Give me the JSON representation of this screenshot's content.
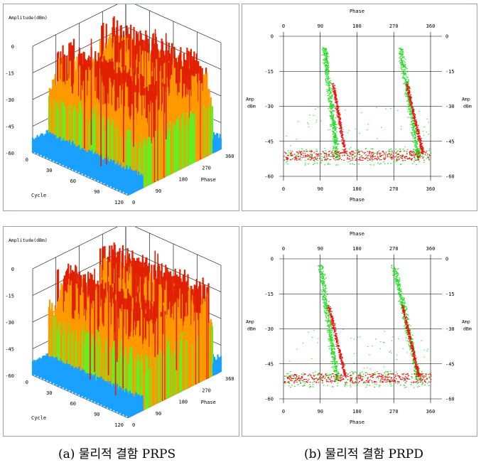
{
  "captions": {
    "left": "(a) 물리적 결함 PRPS",
    "right": "(b) 물리적 결함 PRPD"
  },
  "colors": {
    "grid": "#000000",
    "prpd_noise": "#22dd22",
    "prpd_dense": "#ee1111",
    "prps_low": "#1aa0ff",
    "prps_mid": "#66ee22",
    "prps_high": "#ff9900",
    "prps_peak": "#e02000"
  },
  "chart_data": [
    {
      "type": "surface3d",
      "panel": "top-left",
      "zlabel": "Amplitude(dBm)",
      "xlabel": "Phase",
      "ylabel": "Cycle",
      "z_ticks": [
        "0",
        "-15",
        "-30",
        "-45",
        "-60"
      ],
      "phase_ticks": [
        "0",
        "90",
        "180",
        "270",
        "360"
      ],
      "cycle_ticks": [
        "0",
        "30",
        "60",
        "90",
        "120"
      ],
      "zlim": [
        -60,
        0
      ],
      "xlim": [
        0,
        360
      ],
      "ylim": [
        0,
        120
      ]
    },
    {
      "type": "scatter",
      "panel": "top-right",
      "xlabel": "Phase",
      "ylabel_lines": [
        "Amp",
        "dBm"
      ],
      "x_ticks": [
        "0",
        "90",
        "180",
        "270",
        "360"
      ],
      "y_ticks": [
        "0",
        "-15",
        "-30",
        "-45",
        "-60"
      ],
      "xlim": [
        0,
        360
      ],
      "ylim": [
        -60,
        0
      ],
      "series": [
        {
          "color": "#22dd22",
          "desc": "green",
          "clusters": [
            [
              100,
              130,
              -5,
              -52
            ],
            [
              285,
              330,
              -5,
              -52
            ],
            [
              0,
              360,
              -48,
              -55
            ]
          ]
        },
        {
          "color": "#ee1111",
          "desc": "red",
          "clusters": [
            [
              0,
              360,
              -49,
              -53
            ],
            [
              120,
              150,
              -20,
              -50
            ],
            [
              300,
              340,
              -20,
              -50
            ]
          ]
        }
      ]
    },
    {
      "type": "surface3d",
      "panel": "bottom-left",
      "zlabel": "Amplitude(dBm)",
      "xlabel": "Phase",
      "ylabel": "Cycle",
      "z_ticks": [
        "0",
        "-15",
        "-30",
        "-45",
        "-60"
      ],
      "phase_ticks": [
        "0",
        "90",
        "180",
        "270",
        "360"
      ],
      "cycle_ticks": [
        "0",
        "30",
        "60",
        "90",
        "120"
      ],
      "zlim": [
        -60,
        0
      ],
      "xlim": [
        0,
        360
      ],
      "ylim": [
        0,
        120
      ]
    },
    {
      "type": "scatter",
      "panel": "bottom-right",
      "xlabel": "Phase",
      "ylabel_lines": [
        "Amp",
        "dBm"
      ],
      "x_ticks": [
        "0",
        "90",
        "180",
        "270",
        "360"
      ],
      "y_ticks": [
        "0",
        "-15",
        "-30",
        "-45",
        "-60"
      ],
      "xlim": [
        0,
        360
      ],
      "ylim": [
        -60,
        0
      ],
      "series": [
        {
          "color": "#22dd22",
          "desc": "green",
          "clusters": [
            [
              90,
              130,
              -3,
              -52
            ],
            [
              270,
              330,
              -3,
              -52
            ],
            [
              0,
              360,
              -48,
              -55
            ]
          ]
        },
        {
          "color": "#ee1111",
          "desc": "red",
          "clusters": [
            [
              0,
              360,
              -49,
              -53
            ],
            [
              110,
              150,
              -20,
              -50
            ],
            [
              290,
              330,
              -20,
              -50
            ]
          ]
        }
      ]
    }
  ]
}
